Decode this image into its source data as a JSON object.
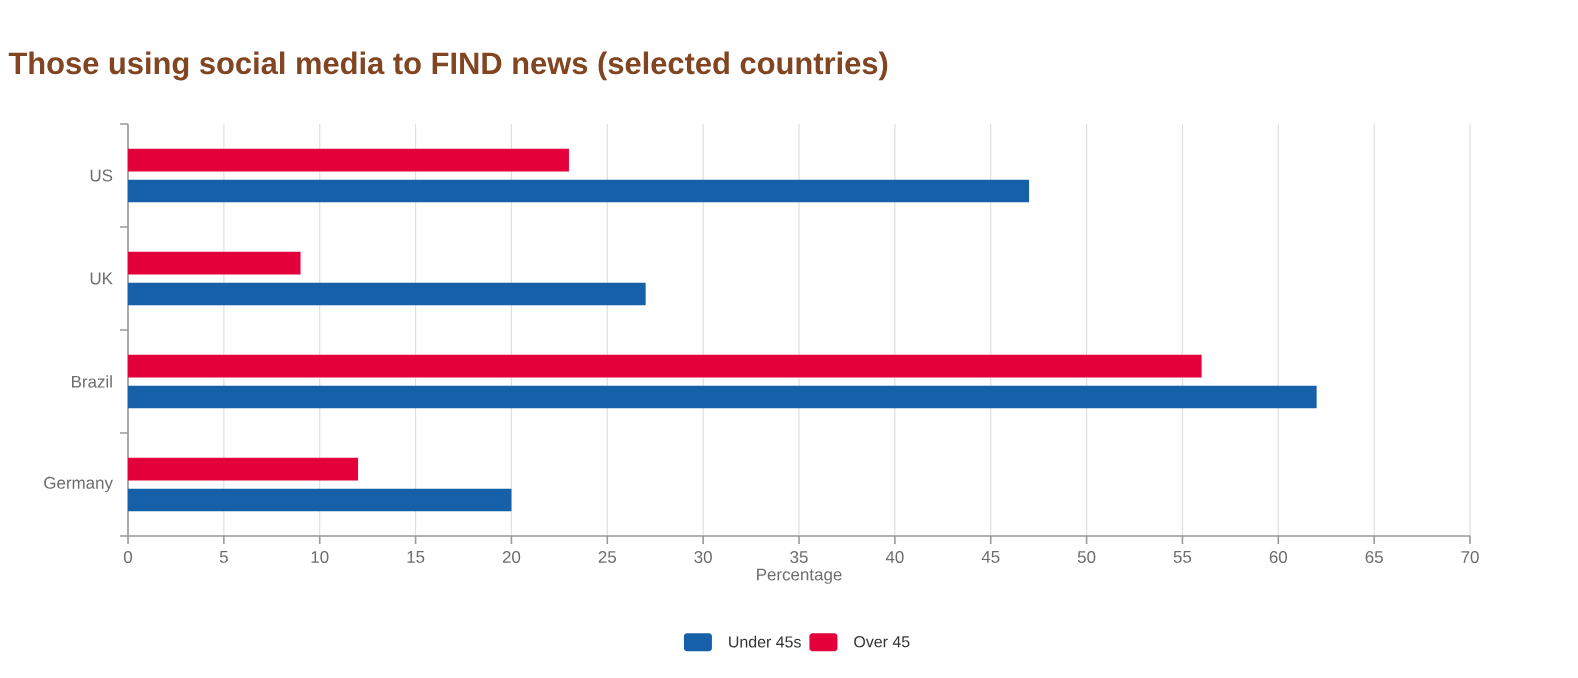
{
  "chart_data": {
    "type": "bar",
    "orientation": "horizontal",
    "title": "Those using social media to FIND news (selected countries)",
    "xlabel": "Percentage",
    "categories": [
      "US",
      "UK",
      "Brazil",
      "Germany"
    ],
    "series": [
      {
        "name": "Under 45s",
        "color": "#1560a8",
        "values": [
          47,
          27,
          62,
          20
        ]
      },
      {
        "name": "Over 45",
        "color": "#e4003b",
        "values": [
          23,
          9,
          56,
          12
        ]
      }
    ],
    "xlim": [
      0,
      70
    ],
    "xticks": [
      0,
      5,
      10,
      15,
      20,
      25,
      30,
      35,
      40,
      45,
      50,
      55,
      60,
      65,
      70
    ],
    "grid": "x",
    "legend": "bottom"
  }
}
